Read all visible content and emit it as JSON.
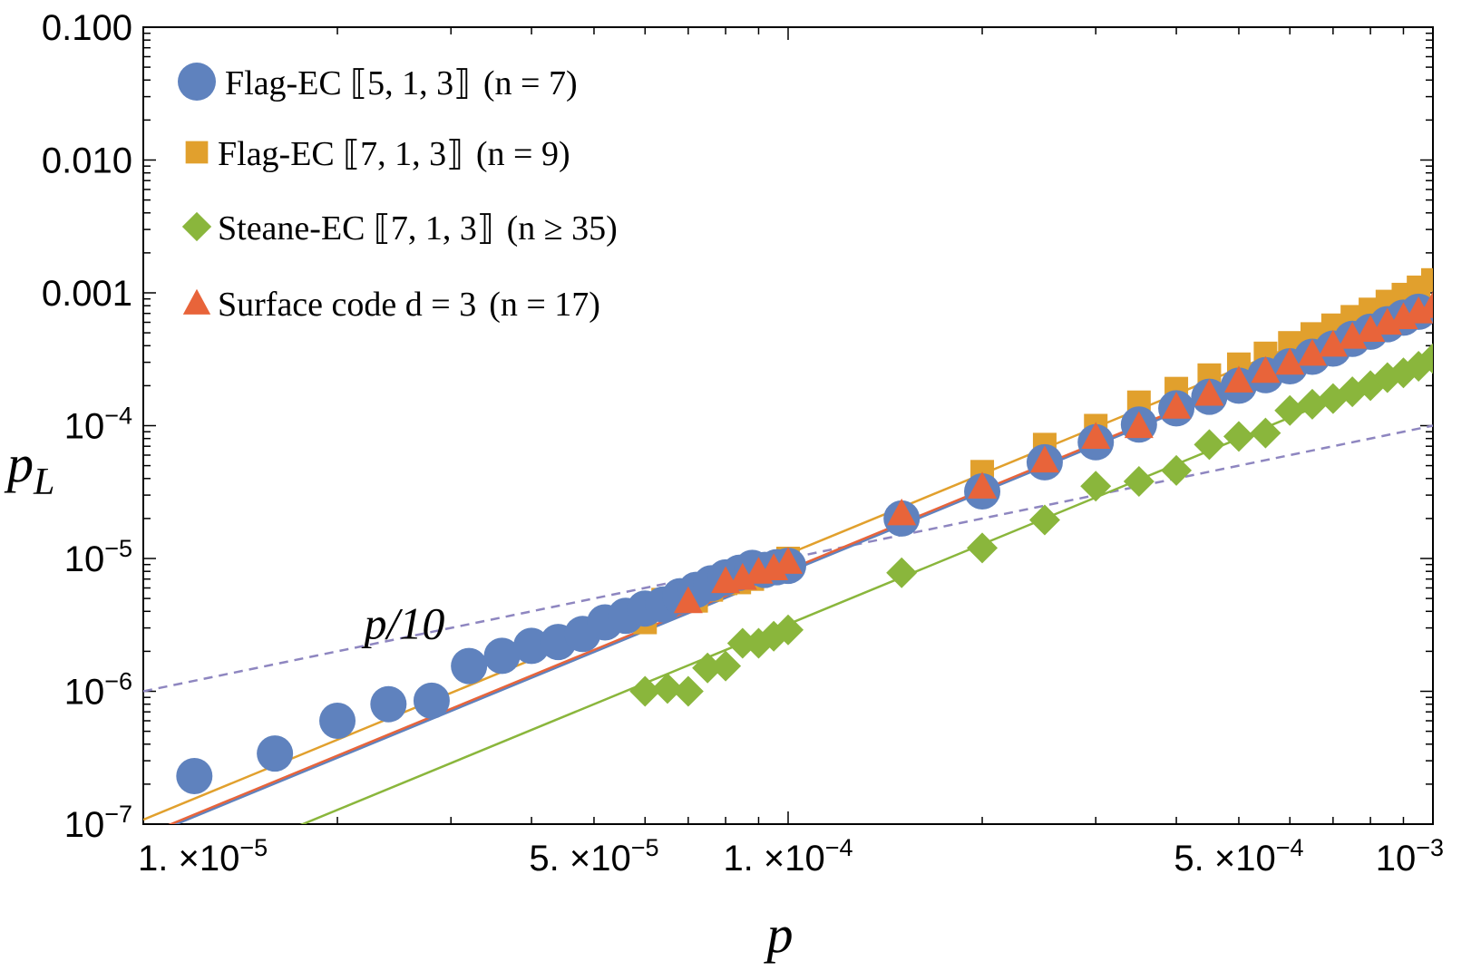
{
  "chart_data": {
    "type": "scatter",
    "x_scale": "log",
    "y_scale": "log",
    "xlabel": "p",
    "ylabel": "p_L",
    "xlim": [
      1e-05,
      0.001
    ],
    "ylim": [
      1e-07,
      0.1
    ],
    "x_ticks": [
      {
        "value": 1e-05,
        "mantissa": "1. ×10",
        "exp": "−5"
      },
      {
        "value": 5e-05,
        "mantissa": "5. ×10",
        "exp": "−5"
      },
      {
        "value": 0.0001,
        "mantissa": "1. ×10",
        "exp": "−4"
      },
      {
        "value": 0.0005,
        "mantissa": "5. ×10",
        "exp": "−4"
      },
      {
        "value": 0.001,
        "mantissa": "10",
        "exp": "−3"
      }
    ],
    "y_ticks": [
      {
        "value": 0.1,
        "mantissa": "0.100",
        "exp": ""
      },
      {
        "value": 0.01,
        "mantissa": "0.010",
        "exp": ""
      },
      {
        "value": 0.001,
        "mantissa": "0.001",
        "exp": ""
      },
      {
        "value": 0.0001,
        "mantissa": "10",
        "exp": "−4"
      },
      {
        "value": 1e-05,
        "mantissa": "10",
        "exp": "−5"
      },
      {
        "value": 1e-06,
        "mantissa": "10",
        "exp": "−6"
      },
      {
        "value": 1e-07,
        "mantissa": "10",
        "exp": "−7"
      }
    ],
    "annotation": {
      "text": "p/10",
      "x": 2.2e-05,
      "y": 3.3e-06
    },
    "reference_line": {
      "name": "p/10",
      "style": "dashed",
      "color": "#8e86c0",
      "coeff": 0.1,
      "power": 1
    },
    "legend_position": "top-left",
    "series": [
      {
        "name": "Flag-EC [[5,1,3]] (n = 7)",
        "label_main": "Flag-EC ⟦5, 1, 3⟧",
        "label_n": "(n = 7)",
        "marker": "circle",
        "color": "#5f82be",
        "fit": {
          "coeff": 790,
          "power": 2
        },
        "x": [
          1.2e-05,
          1.6e-05,
          2e-05,
          2.4e-05,
          2.8e-05,
          3.2e-05,
          3.6e-05,
          4e-05,
          4.4e-05,
          4.8e-05,
          5.2e-05,
          5.6e-05,
          6e-05,
          6.4e-05,
          6.8e-05,
          7.2e-05,
          7.6e-05,
          8e-05,
          8.4e-05,
          8.8e-05,
          9.2e-05,
          9.6e-05,
          0.0001,
          0.00015,
          0.0002,
          0.00025,
          0.0003,
          0.00035,
          0.0004,
          0.00045,
          0.0005,
          0.00055,
          0.0006,
          0.00065,
          0.0007,
          0.00075,
          0.0008,
          0.00085,
          0.0009,
          0.00095
        ],
        "values": [
          2.3e-07,
          3.4e-07,
          6e-07,
          8e-07,
          8.5e-07,
          1.55e-06,
          1.85e-06,
          2.2e-06,
          2.35e-06,
          2.7e-06,
          3.3e-06,
          3.7e-06,
          4.2e-06,
          4.5e-06,
          5.2e-06,
          5.8e-06,
          6.5e-06,
          7.2e-06,
          7.8e-06,
          8.5e-06,
          8.2e-06,
          8.6e-06,
          8.8e-06,
          2e-05,
          3.2e-05,
          5.3e-05,
          7.5e-05,
          0.000102,
          0.000135,
          0.000165,
          0.0002,
          0.00024,
          0.00028,
          0.00033,
          0.00038,
          0.00045,
          0.00051,
          0.00058,
          0.00065,
          0.00072
        ]
      },
      {
        "name": "Flag-EC [[7,1,3]] (n = 9)",
        "label_main": "Flag-EC ⟦7, 1, 3⟧",
        "label_n": "(n = 9)",
        "marker": "square",
        "color": "#e1a02d",
        "fit": {
          "coeff": 1080,
          "power": 2
        },
        "x": [
          6e-05,
          6.4e-05,
          6.8e-05,
          7.2e-05,
          7.6e-05,
          8e-05,
          8.4e-05,
          8.8e-05,
          9.2e-05,
          9.6e-05,
          0.0001,
          0.0002,
          0.00025,
          0.0003,
          0.00035,
          0.0004,
          0.00045,
          0.0005,
          0.00055,
          0.0006,
          0.00065,
          0.0007,
          0.00075,
          0.0008,
          0.00085,
          0.0009,
          0.00095,
          0.001
        ],
        "values": [
          3.3e-06,
          4.9e-06,
          5e-06,
          4.8e-06,
          5.8e-06,
          6.5e-06,
          6.6e-06,
          7e-06,
          8.8e-06,
          9e-06,
          1e-05,
          4.5e-05,
          7.2e-05,
          0.0001,
          0.00015,
          0.00019,
          0.00024,
          0.00029,
          0.00035,
          0.00042,
          0.00049,
          0.00057,
          0.00066,
          0.00075,
          0.00086,
          0.00097,
          0.0011,
          0.00125
        ]
      },
      {
        "name": "Steane-EC [[7,1,3]] (n ≥ 35)",
        "label_main": "Steane-EC ⟦7, 1, 3⟧",
        "label_n": "(n ≥ 35)",
        "marker": "diamond",
        "color": "#8ab63c",
        "fit": {
          "coeff": 320,
          "power": 2
        },
        "x": [
          6e-05,
          6.5e-05,
          7e-05,
          7.5e-05,
          8e-05,
          8.5e-05,
          9e-05,
          9.5e-05,
          0.0001,
          0.00015,
          0.0002,
          0.00025,
          0.0003,
          0.00035,
          0.0004,
          0.00045,
          0.0005,
          0.00055,
          0.0006,
          0.00065,
          0.0007,
          0.00075,
          0.0008,
          0.00085,
          0.0009,
          0.00095,
          0.001
        ],
        "values": [
          1e-06,
          1.05e-06,
          1e-06,
          1.5e-06,
          1.55e-06,
          2.3e-06,
          2.3e-06,
          2.6e-06,
          2.9e-06,
          7.8e-06,
          1.2e-05,
          1.95e-05,
          3.5e-05,
          3.8e-05,
          4.6e-05,
          7.2e-05,
          8.3e-05,
          8.8e-05,
          0.00013,
          0.000145,
          0.00016,
          0.00018,
          0.0002,
          0.00023,
          0.00025,
          0.00028,
          0.00032
        ]
      },
      {
        "name": "Surface code d = 3 (n = 17)",
        "label_main": "Surface code d = 3",
        "label_n": "(n = 17)",
        "marker": "triangle",
        "color": "#e8643a",
        "fit": {
          "coeff": 820,
          "power": 2
        },
        "x": [
          7e-05,
          8e-05,
          8.5e-05,
          9e-05,
          9.5e-05,
          0.0001,
          0.00015,
          0.0002,
          0.00025,
          0.0003,
          0.00035,
          0.0004,
          0.00045,
          0.0005,
          0.00055,
          0.0006,
          0.00065,
          0.0007,
          0.00075,
          0.0008,
          0.00085,
          0.0009,
          0.00095,
          0.001
        ],
        "values": [
          4.8e-06,
          6.8e-06,
          7.2e-06,
          8e-06,
          8.5e-06,
          9.5e-06,
          2.2e-05,
          3.5e-05,
          5.5e-05,
          8.3e-05,
          0.0001,
          0.00014,
          0.000175,
          0.00022,
          0.00026,
          0.0003,
          0.00035,
          0.00041,
          0.00047,
          0.00053,
          0.0006,
          0.00066,
          0.00073,
          0.0008
        ]
      }
    ]
  }
}
